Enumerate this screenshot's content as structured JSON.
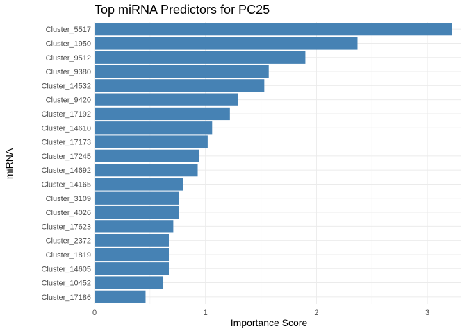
{
  "chart_data": {
    "type": "bar",
    "orientation": "horizontal",
    "title": "Top miRNA Predictors for PC25",
    "xlabel": "Importance Score",
    "ylabel": "miRNA",
    "xlim": [
      0,
      3.3
    ],
    "xticks": [
      0,
      1,
      2,
      3
    ],
    "grid": true,
    "bar_color": "#4682b4",
    "categories": [
      "Cluster_5517",
      "Cluster_1950",
      "Cluster_9512",
      "Cluster_9380",
      "Cluster_14532",
      "Cluster_9420",
      "Cluster_17192",
      "Cluster_14610",
      "Cluster_17173",
      "Cluster_17245",
      "Cluster_14692",
      "Cluster_14165",
      "Cluster_3109",
      "Cluster_4026",
      "Cluster_17623",
      "Cluster_2372",
      "Cluster_1819",
      "Cluster_14605",
      "Cluster_10452",
      "Cluster_17186"
    ],
    "values": [
      3.22,
      2.37,
      1.9,
      1.57,
      1.53,
      1.29,
      1.22,
      1.06,
      1.02,
      0.94,
      0.93,
      0.8,
      0.76,
      0.76,
      0.71,
      0.67,
      0.67,
      0.67,
      0.62,
      0.46
    ]
  }
}
